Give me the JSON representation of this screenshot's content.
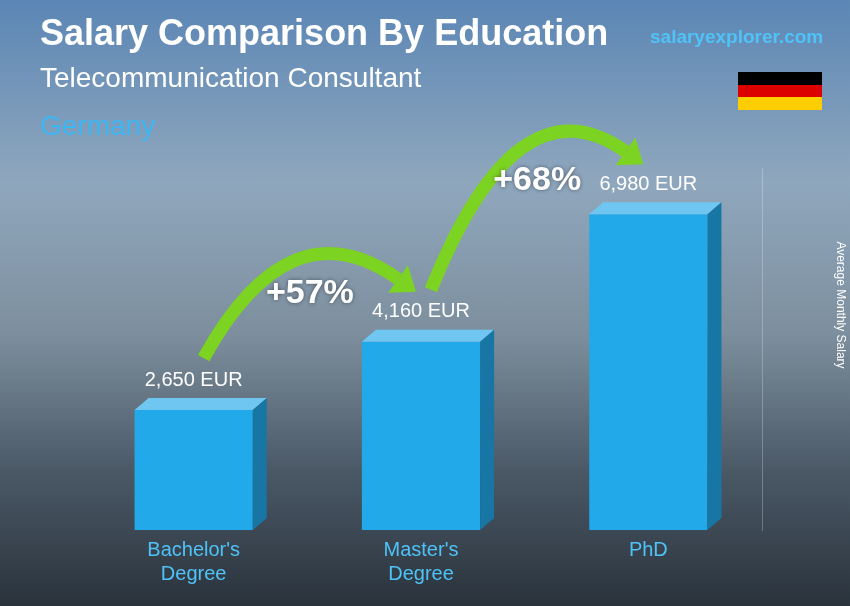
{
  "chart_data": {
    "type": "bar",
    "title": "Salary Comparison By Education",
    "subtitle": "Telecommunication Consultant",
    "region": "Germany",
    "source": "salaryexplorer.com",
    "y_label": "Average Monthly Salary",
    "categories": [
      "Bachelor's Degree",
      "Master's Degree",
      "PhD"
    ],
    "values": [
      2650,
      4160,
      6980
    ],
    "value_labels": [
      "2,650 EUR",
      "4,160 EUR",
      "6,980 EUR"
    ],
    "color": "#22a9ea",
    "ylim": [
      0,
      8000
    ],
    "grid": false,
    "tick_labels": "x",
    "data_labels": true,
    "annotations": [
      {
        "text": "+57%",
        "from": "Bachelor's Degree",
        "to": "Master's Degree"
      },
      {
        "text": "+68%",
        "from": "Master's Degree",
        "to": "PhD"
      }
    ]
  }
}
